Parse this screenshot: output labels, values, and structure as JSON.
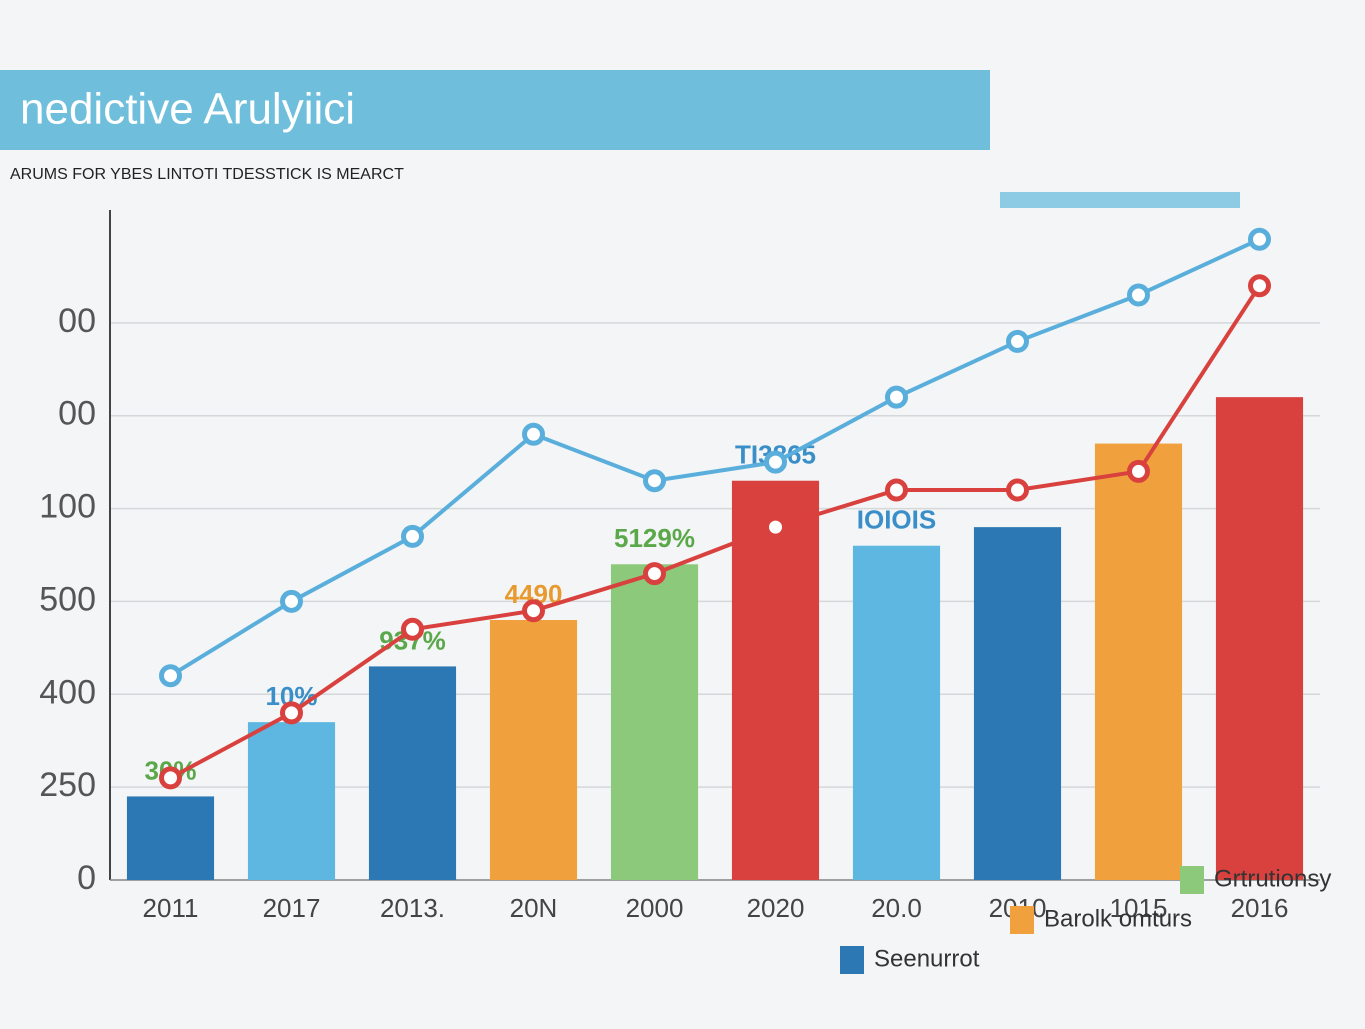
{
  "chart_data": {
    "type": "bar",
    "title": "nedictive Arulyiici",
    "subtitle": "ARUMS FOR YBES LINTOTI TDESSTICK IS MEARCT",
    "categories": [
      "2011",
      "2017",
      "2013.",
      "20N",
      "2000",
      "2020",
      "20.0",
      "2010",
      "1015",
      "2016"
    ],
    "values": [
      90,
      170,
      230,
      280,
      340,
      430,
      360,
      380,
      470,
      520
    ],
    "colors": [
      "#2b78b5",
      "#5db7e0",
      "#2b78b5",
      "#f0a03c",
      "#8cc97a",
      "#d9413f",
      "#5db7e0",
      "#2b78b5",
      "#f0a03c",
      "#d9413f"
    ],
    "lines": [
      {
        "color": "#5aaedc",
        "values": [
          220,
          300,
          370,
          480,
          430,
          450,
          520,
          580,
          630,
          690
        ]
      },
      {
        "color": "#d9413f",
        "values": [
          110,
          180,
          270,
          290,
          330,
          380,
          420,
          420,
          440,
          640
        ]
      }
    ],
    "annotations": [
      "30%",
      "10%",
      "937%",
      "4490",
      "5129%",
      "TI3865",
      "IOIOIS"
    ],
    "annotation_colors": [
      "#5aa84a",
      "#3a8fc8",
      "#5aa84a",
      "#e89a2e",
      "#5aa84a",
      "#3a8fc8",
      "#3a8fc8"
    ],
    "legend": [
      {
        "label": "Seenurrot",
        "color": "#2b78b5"
      },
      {
        "label": "Barolk omturs",
        "color": "#f0a03c"
      },
      {
        "label": "Grtrutionsy",
        "color": "#8cc97a"
      }
    ],
    "ylim": [
      0,
      700
    ],
    "yticks": [
      0,
      {
        "value": 100,
        "label": "250"
      },
      {
        "value": 200,
        "label": "400"
      },
      {
        "value": 300,
        "label": "500"
      },
      {
        "value": 400,
        "label": "100"
      },
      {
        "value": 500,
        "label": "00"
      },
      {
        "value": 600,
        "label": "00"
      }
    ],
    "grid": true
  }
}
